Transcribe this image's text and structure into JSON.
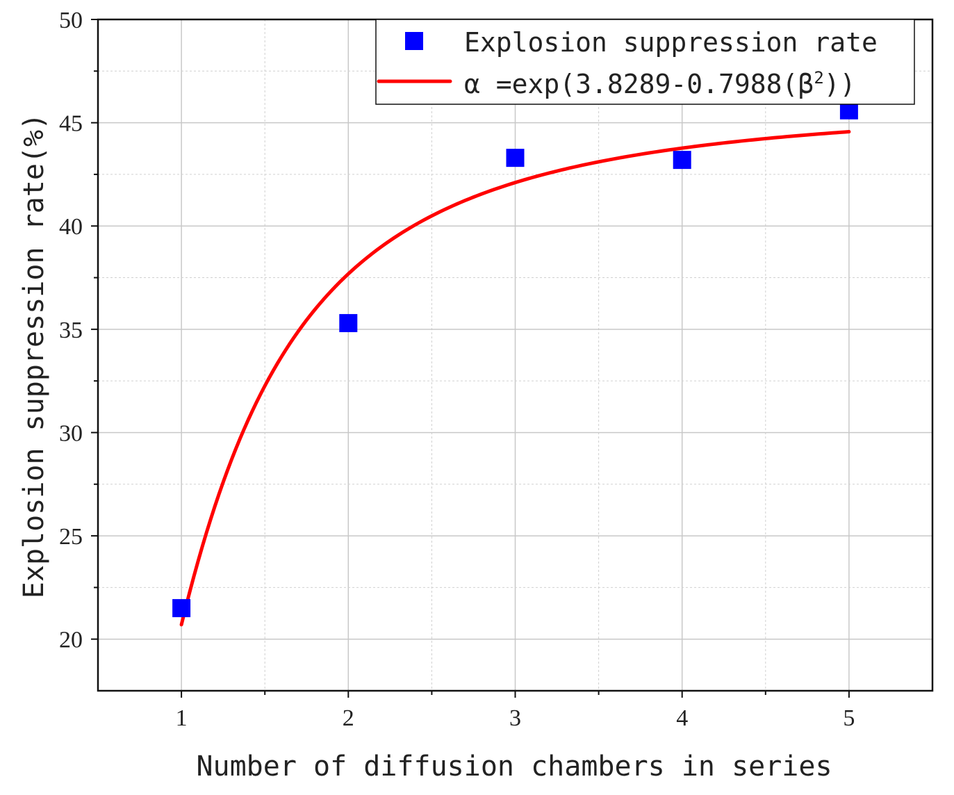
{
  "chart_data": {
    "type": "scatter",
    "xlabel": "Number of diffusion chambers in series",
    "ylabel": "Explosion suppression rate(%)",
    "xlim": [
      0.5,
      5.5
    ],
    "ylim": [
      17.5,
      50
    ],
    "x_ticks": [
      1,
      2,
      3,
      4,
      5
    ],
    "y_ticks": [
      20,
      25,
      30,
      35,
      40,
      45,
      50
    ],
    "grid": true,
    "legend_position": "top-right",
    "series": [
      {
        "name": "Explosion suppression rate",
        "kind": "scatter",
        "marker": "square",
        "color": "#0000ff",
        "x": [
          1,
          2,
          3,
          4,
          5
        ],
        "y": [
          21.5,
          35.3,
          43.3,
          43.2,
          45.6
        ]
      },
      {
        "name": "α =exp(3.8289-0.7988(β²))",
        "label_parts": {
          "lead": "α =exp(3.8289-0.7988(β",
          "sup": "2",
          "tail": "))"
        },
        "kind": "line",
        "color": "#ff0000",
        "fit": {
          "a": 3.8289,
          "b": 0.7988,
          "x_from": 1,
          "x_to": 5
        }
      }
    ]
  }
}
